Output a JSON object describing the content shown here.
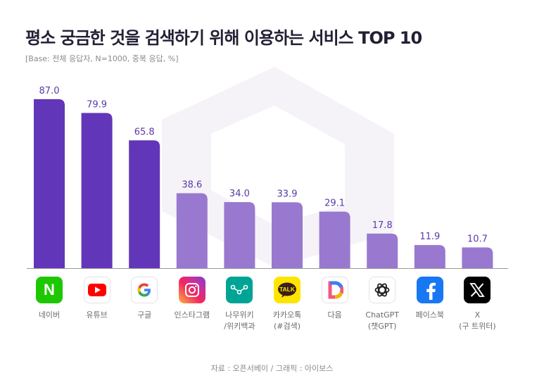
{
  "header": {
    "title": "평소 궁금한 것을 검색하기 위해 이용하는 서비스 TOP 10",
    "subtitle": "[Base: 전체 응답자, N=1000, 중복 응답, %]"
  },
  "footer": {
    "source": "자료 : 오픈서베이 / 그래픽 : 아이보스"
  },
  "colors": {
    "top3": "#6236b8",
    "rest": "#9979cf",
    "value_label": "#5b3aa6",
    "axis": "#9a9a9a"
  },
  "chart_data": {
    "type": "bar",
    "title": "평소 궁금한 것을 검색하기 위해 이용하는 서비스 TOP 10",
    "subtitle": "[Base: 전체 응답자, N=1000, 중복 응답, %]",
    "categories": [
      "네이버",
      "유튜브",
      "구글",
      "인스타그램",
      "나무위키\n/위키백과",
      "카카오톡\n(#검색)",
      "다음",
      "ChatGPT\n(챗GPT)",
      "페이스북",
      "X\n(구 트위터)"
    ],
    "values": [
      87.0,
      79.9,
      65.8,
      38.6,
      34.0,
      33.9,
      29.1,
      17.8,
      11.9,
      10.7
    ],
    "value_labels": [
      "87.0",
      "79.9",
      "65.8",
      "38.6",
      "34.0",
      "33.9",
      "29.1",
      "17.8",
      "11.9",
      "10.7"
    ],
    "icons": [
      "naver-icon",
      "youtube-icon",
      "google-icon",
      "instagram-icon",
      "namuwiki-icon",
      "kakaotalk-icon",
      "daum-icon",
      "chatgpt-icon",
      "facebook-icon",
      "x-icon"
    ],
    "ylim": [
      0,
      90
    ],
    "grid": false,
    "legend": "none"
  }
}
